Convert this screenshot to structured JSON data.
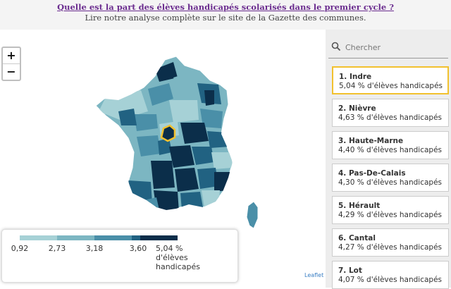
{
  "header": {
    "title": "Quelle est la part des élèves handicapés scolarisés dans le premier cycle ?",
    "subtitle": "Lire notre analyse complète sur le site de la Gazette des communes."
  },
  "zoom": {
    "in_label": "+",
    "out_label": "−"
  },
  "legend": {
    "colors": [
      "#a6d1d6",
      "#7cb6c2",
      "#4a8fa8",
      "#216282",
      "#0b2e4a"
    ],
    "ticks": [
      "0,92",
      "2,73",
      "3,18",
      "3,60"
    ],
    "last_label": "5,04 % d'élèves handicapés"
  },
  "attribution": "Leaflet",
  "search": {
    "placeholder": "Chercher"
  },
  "ranking": [
    {
      "name": "1. Indre",
      "value": "5,04 % d'élèves handicapés",
      "selected": true
    },
    {
      "name": "2. Nièvre",
      "value": "4,63 % d'élèves handicapés"
    },
    {
      "name": "3. Haute-Marne",
      "value": "4,40 % d'élèves handicapés"
    },
    {
      "name": "4. Pas-De-Calais",
      "value": "4,30 % d'élèves handicapés"
    },
    {
      "name": "5. Hérault",
      "value": "4,29 % d'élèves handicapés"
    },
    {
      "name": "6. Cantal",
      "value": "4,27 % d'élèves handicapés"
    },
    {
      "name": "7. Lot",
      "value": "4,07 % d'élèves handicapés"
    }
  ],
  "colors": {
    "selected_outline": "#f2c12e",
    "title_link": "#6b2d8f"
  }
}
